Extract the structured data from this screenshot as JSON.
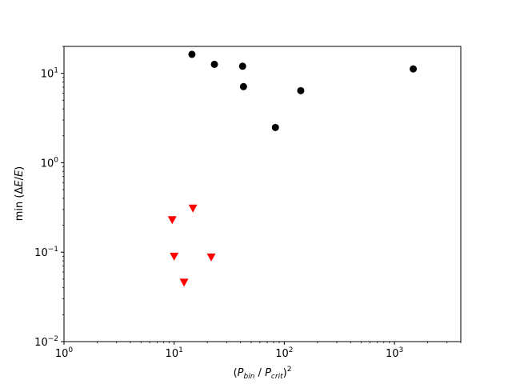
{
  "chart_data": {
    "type": "scatter",
    "title": "",
    "xscale": "log",
    "yscale": "log",
    "xlim": [
      1,
      4000
    ],
    "ylim": [
      0.01,
      20
    ],
    "grid": false,
    "legend": "none",
    "xlabel": {
      "open": "(",
      "P1": "P",
      "sub1": "bin",
      "slash": " / ",
      "P2": "P",
      "sub2": "crit",
      "close": ")",
      "exp": "2"
    },
    "ylabel": {
      "prefix": "min (",
      "delta": "Δ",
      "E1": "E",
      "slash": "/",
      "E2": "E",
      "close": ")"
    },
    "x_ticks": [
      {
        "value": 1,
        "base": "10",
        "exp": "0"
      },
      {
        "value": 10,
        "base": "10",
        "exp": "1"
      },
      {
        "value": 100,
        "base": "10",
        "exp": "2"
      },
      {
        "value": 1000,
        "base": "10",
        "exp": "3"
      }
    ],
    "y_ticks": [
      {
        "value": 0.01,
        "base": "10",
        "exp": "−2"
      },
      {
        "value": 0.1,
        "base": "10",
        "exp": "−1"
      },
      {
        "value": 1,
        "base": "10",
        "exp": "0"
      },
      {
        "value": 10,
        "base": "10",
        "exp": "1"
      }
    ],
    "series": [
      {
        "marker": "circle",
        "color": "#000000",
        "points": [
          {
            "x": 14.5,
            "y": 16.3
          },
          {
            "x": 23.2,
            "y": 12.6
          },
          {
            "x": 41.8,
            "y": 12.0
          },
          {
            "x": 42.6,
            "y": 7.1
          },
          {
            "x": 83.0,
            "y": 2.48
          },
          {
            "x": 141.0,
            "y": 6.4
          },
          {
            "x": 1480.0,
            "y": 11.2
          }
        ]
      },
      {
        "marker": "triangle-down",
        "color": "#ff0000",
        "points": [
          {
            "x": 9.6,
            "y": 0.23
          },
          {
            "x": 14.8,
            "y": 0.31
          },
          {
            "x": 10.0,
            "y": 0.09
          },
          {
            "x": 21.7,
            "y": 0.088
          },
          {
            "x": 12.3,
            "y": 0.046
          }
        ]
      }
    ]
  }
}
